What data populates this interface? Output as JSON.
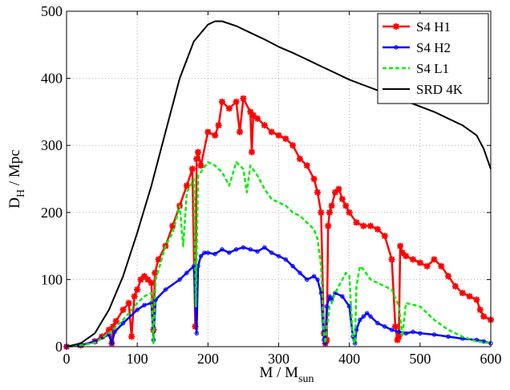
{
  "chart_data": {
    "type": "line",
    "xlabel_main": "M / M",
    "xlabel_sub": "sun",
    "ylabel_main": "D",
    "ylabel_sub": "H",
    "ylabel_rest": " / Mpc",
    "xlim": [
      0,
      600
    ],
    "ylim": [
      0,
      500
    ],
    "xticks": [
      0,
      100,
      200,
      300,
      400,
      500,
      600
    ],
    "yticks": [
      0,
      100,
      200,
      300,
      400,
      500
    ],
    "grid": "dotted",
    "legend_position": "top-right",
    "series": [
      {
        "name": "S4 H1",
        "color": "#ff0000",
        "style": "solid",
        "marker": "star",
        "x": [
          0,
          20,
          40,
          50,
          60,
          64,
          66,
          70,
          80,
          88,
          92,
          96,
          100,
          105,
          110,
          115,
          120,
          123,
          125,
          130,
          140,
          150,
          160,
          170,
          178,
          182,
          184,
          186,
          190,
          200,
          210,
          215,
          220,
          230,
          240,
          245,
          250,
          260,
          262,
          264,
          270,
          280,
          290,
          300,
          310,
          320,
          330,
          340,
          350,
          355,
          360,
          364,
          366,
          368,
          370,
          372,
          375,
          380,
          385,
          390,
          395,
          400,
          410,
          420,
          430,
          440,
          450,
          460,
          465,
          468,
          470,
          472,
          475,
          480,
          490,
          500,
          510,
          520,
          530,
          540,
          550,
          560,
          570,
          580,
          585,
          590,
          600
        ],
        "y": [
          0,
          2,
          8,
          15,
          25,
          5,
          30,
          38,
          55,
          65,
          15,
          75,
          85,
          100,
          105,
          100,
          95,
          25,
          110,
          130,
          150,
          180,
          210,
          240,
          265,
          30,
          280,
          290,
          270,
          320,
          315,
          330,
          365,
          355,
          365,
          320,
          370,
          350,
          290,
          345,
          340,
          330,
          320,
          315,
          310,
          300,
          280,
          270,
          250,
          230,
          200,
          20,
          5,
          10,
          180,
          200,
          210,
          230,
          235,
          220,
          210,
          200,
          185,
          180,
          180,
          175,
          165,
          130,
          30,
          10,
          15,
          150,
          140,
          135,
          130,
          125,
          120,
          130,
          120,
          105,
          90,
          80,
          75,
          70,
          55,
          45,
          40
        ]
      },
      {
        "name": "S4 H2",
        "color": "#0000ff",
        "style": "solid",
        "marker": "circle",
        "x": [
          0,
          20,
          40,
          60,
          64,
          68,
          80,
          100,
          110,
          120,
          123,
          126,
          140,
          160,
          170,
          180,
          184,
          186,
          190,
          195,
          200,
          210,
          220,
          230,
          240,
          250,
          260,
          270,
          280,
          290,
          300,
          310,
          320,
          330,
          340,
          350,
          355,
          360,
          364,
          366,
          368,
          372,
          375,
          380,
          390,
          400,
          405,
          408,
          410,
          415,
          420,
          425,
          430,
          440,
          450,
          460,
          470,
          480,
          490,
          500,
          520,
          540,
          560,
          580,
          590,
          600
        ],
        "y": [
          0,
          2,
          8,
          18,
          5,
          22,
          35,
          55,
          62,
          65,
          10,
          70,
          85,
          100,
          110,
          120,
          20,
          120,
          135,
          140,
          140,
          138,
          145,
          140,
          145,
          148,
          145,
          142,
          148,
          140,
          135,
          130,
          120,
          110,
          100,
          105,
          100,
          80,
          10,
          5,
          60,
          75,
          70,
          80,
          75,
          60,
          15,
          5,
          25,
          40,
          45,
          50,
          45,
          35,
          30,
          25,
          22,
          20,
          22,
          20,
          18,
          15,
          12,
          10,
          8,
          5
        ]
      },
      {
        "name": "S4 L1",
        "color": "#00ee00",
        "style": "dashed",
        "marker": "none",
        "x": [
          0,
          20,
          40,
          60,
          80,
          100,
          110,
          120,
          123,
          126,
          140,
          150,
          160,
          165,
          170,
          175,
          180,
          183,
          186,
          190,
          200,
          210,
          220,
          230,
          240,
          250,
          255,
          260,
          270,
          280,
          290,
          300,
          310,
          320,
          330,
          340,
          350,
          355,
          360,
          364,
          366,
          368,
          370,
          372,
          375,
          380,
          385,
          390,
          395,
          400,
          405,
          408,
          410,
          415,
          420,
          430,
          440,
          460,
          470,
          475,
          480,
          500,
          520,
          540,
          560,
          580,
          600
        ],
        "y": [
          0,
          2,
          6,
          20,
          40,
          65,
          75,
          80,
          5,
          100,
          150,
          170,
          210,
          150,
          230,
          240,
          250,
          60,
          255,
          260,
          275,
          270,
          260,
          240,
          275,
          265,
          230,
          270,
          255,
          235,
          220,
          215,
          210,
          200,
          195,
          185,
          175,
          160,
          120,
          20,
          5,
          30,
          40,
          60,
          65,
          80,
          90,
          100,
          110,
          105,
          10,
          5,
          90,
          120,
          115,
          100,
          95,
          85,
          60,
          15,
          65,
          60,
          40,
          25,
          15,
          8,
          5
        ]
      },
      {
        "name": "SRD 4K",
        "color": "#000000",
        "style": "solid",
        "marker": "none",
        "x": [
          0,
          20,
          40,
          60,
          80,
          100,
          120,
          140,
          160,
          180,
          200,
          210,
          220,
          240,
          260,
          280,
          300,
          320,
          340,
          360,
          380,
          400,
          420,
          440,
          460,
          480,
          500,
          520,
          540,
          560,
          580,
          590,
          600
        ],
        "y": [
          0,
          5,
          20,
          55,
          105,
          170,
          240,
          320,
          400,
          455,
          480,
          485,
          485,
          478,
          468,
          458,
          447,
          438,
          428,
          418,
          408,
          398,
          390,
          382,
          374,
          366,
          358,
          350,
          340,
          330,
          315,
          295,
          265
        ]
      }
    ]
  }
}
